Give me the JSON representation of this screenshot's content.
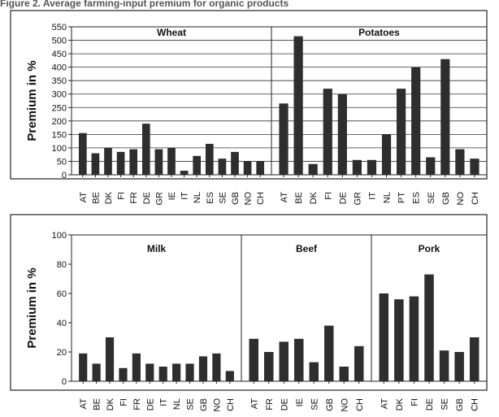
{
  "figure_title": "Figure 2. Average farming-input premium for organic products",
  "chart_data": [
    {
      "type": "bar",
      "ylabel": "Premium in %",
      "ylim": [
        0,
        550
      ],
      "yticks": [
        0,
        50,
        100,
        150,
        200,
        250,
        300,
        350,
        400,
        450,
        500,
        550
      ],
      "grid": true,
      "panels": [
        {
          "title": "Wheat",
          "categories": [
            "AT",
            "BE",
            "DK",
            "FI",
            "FR",
            "DE",
            "GR",
            "IE",
            "IT",
            "NL",
            "ES",
            "SE",
            "GB",
            "NO",
            "CH"
          ],
          "values": [
            155,
            80,
            100,
            85,
            95,
            190,
            95,
            100,
            15,
            70,
            115,
            60,
            85,
            50,
            50
          ]
        },
        {
          "title": "Potatoes",
          "categories": [
            "AT",
            "BE",
            "DK",
            "FI",
            "DE",
            "GR",
            "IT",
            "NL",
            "PT",
            "ES",
            "SE",
            "GB",
            "NO",
            "CH"
          ],
          "values": [
            265,
            515,
            40,
            320,
            300,
            55,
            55,
            150,
            320,
            400,
            65,
            430,
            95,
            60
          ]
        }
      ]
    },
    {
      "type": "bar",
      "ylabel": "Premium in %",
      "ylim": [
        0,
        100
      ],
      "yticks": [
        0,
        20,
        40,
        60,
        80,
        100
      ],
      "grid": false,
      "panels": [
        {
          "title": "Milk",
          "categories": [
            "AT",
            "BE",
            "DK",
            "FI",
            "FR",
            "DE",
            "IT",
            "NL",
            "SE",
            "GB",
            "NO",
            "CH"
          ],
          "values": [
            19,
            12,
            30,
            9,
            19,
            12,
            10,
            12,
            12,
            17,
            19,
            7
          ]
        },
        {
          "title": "Beef",
          "categories": [
            "AT",
            "FR",
            "DE",
            "IE",
            "SE",
            "GB",
            "NO",
            "CH"
          ],
          "values": [
            29,
            20,
            27,
            29,
            13,
            38,
            10,
            24
          ]
        },
        {
          "title": "Pork",
          "categories": [
            "AT",
            "DK",
            "FI",
            "DE",
            "SE",
            "GB",
            "CH"
          ],
          "values": [
            60,
            56,
            58,
            73,
            21,
            20,
            30
          ]
        }
      ]
    }
  ]
}
